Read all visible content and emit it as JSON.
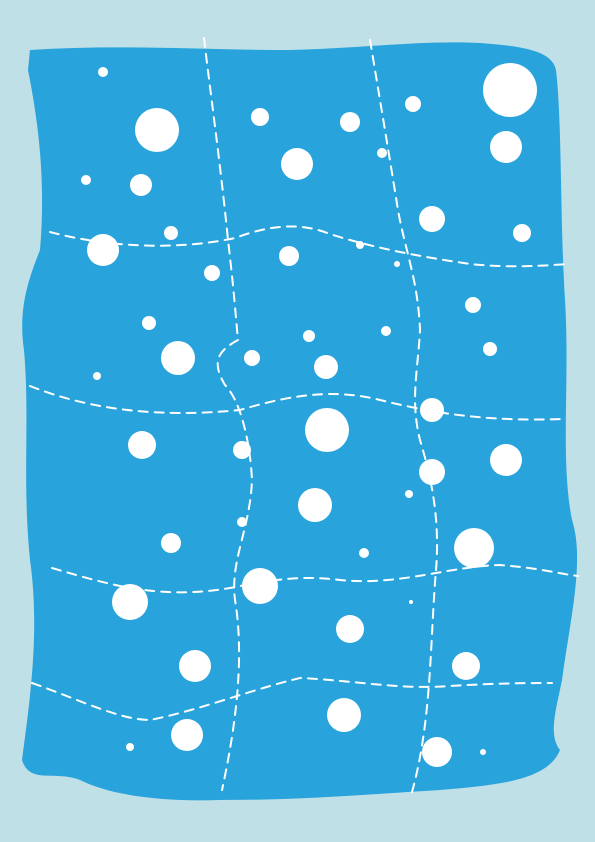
{
  "colors": {
    "background": "#BFE0E6",
    "blanket": "#29A3DC",
    "dots": "#FFFFFF",
    "seams": "#FFFFFF"
  },
  "icons": {
    "artwork": "dotted-blanket",
    "dot": "polka-dot",
    "seam": "dashed-stitch-line"
  }
}
